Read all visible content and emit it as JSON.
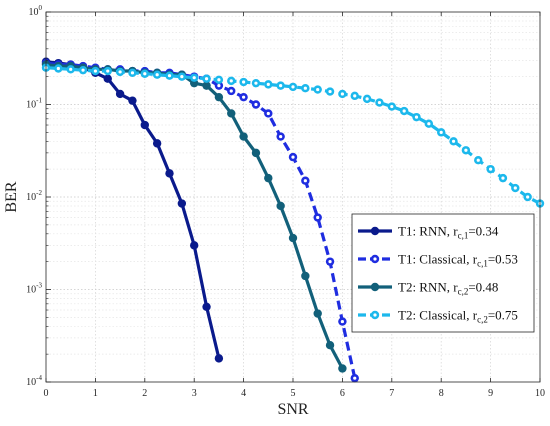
{
  "chart_data": {
    "type": "line",
    "title": "",
    "xlabel": "SNR",
    "ylabel": "BER",
    "xlim": [
      0,
      10
    ],
    "ylim": [
      0.0001,
      1
    ],
    "yscale": "log",
    "grid": true,
    "legend_position": "bottom-right",
    "x_ticks": [
      "0",
      "1",
      "2",
      "3",
      "4",
      "5",
      "6",
      "7",
      "8",
      "9",
      "10"
    ],
    "y_ticks": [
      {
        "base": "10",
        "exp": "0",
        "value": 1
      },
      {
        "base": "10",
        "exp": "-1",
        "value": 0.1
      },
      {
        "base": "10",
        "exp": "-2",
        "value": 0.01
      },
      {
        "base": "10",
        "exp": "-3",
        "value": 0.001
      },
      {
        "base": "10",
        "exp": "-4",
        "value": 0.0001
      }
    ],
    "series": [
      {
        "name": "T1: RNN, r_{c,1}=0.34",
        "legend": {
          "prefix": "T1: RNN, r",
          "sub": "c,1",
          "suffix": "=0.34"
        },
        "color": "#0a1a8c",
        "dashed": false,
        "marker": "filled",
        "x": [
          0,
          0.25,
          0.5,
          0.75,
          1,
          1.25,
          1.5,
          1.75,
          2,
          2.25,
          2.5,
          2.75,
          3,
          3.25,
          3.5
        ],
        "y": [
          0.29,
          0.28,
          0.27,
          0.25,
          0.22,
          0.19,
          0.13,
          0.11,
          0.06,
          0.038,
          0.018,
          0.0085,
          0.003,
          0.00065,
          0.00018
        ]
      },
      {
        "name": "T1: Classical, r_{c,1}=0.53",
        "legend": {
          "prefix": "T1: Classical, r",
          "sub": "c,1",
          "suffix": "=0.53"
        },
        "color": "#1f2de0",
        "dashed": true,
        "marker": "hollow",
        "x": [
          0,
          0.25,
          0.5,
          0.75,
          1,
          1.25,
          1.5,
          1.75,
          2,
          2.25,
          2.5,
          2.75,
          3,
          3.25,
          3.5,
          3.75,
          4,
          4.25,
          4.5,
          4.75,
          5,
          5.25,
          5.5,
          5.75,
          6,
          6.25
        ],
        "y": [
          0.28,
          0.27,
          0.27,
          0.26,
          0.25,
          0.24,
          0.24,
          0.23,
          0.23,
          0.22,
          0.22,
          0.21,
          0.2,
          0.19,
          0.16,
          0.14,
          0.12,
          0.1,
          0.08,
          0.045,
          0.027,
          0.015,
          0.006,
          0.002,
          0.00045,
          0.00011
        ]
      },
      {
        "name": "T2: RNN, r_{c,2}=0.48",
        "legend": {
          "prefix": "T2: RNN, r",
          "sub": "c,2",
          "suffix": "=0.48"
        },
        "color": "#12607a",
        "dashed": false,
        "marker": "filled",
        "x": [
          0,
          0.25,
          0.5,
          0.75,
          1,
          1.25,
          1.5,
          1.75,
          2,
          2.25,
          2.5,
          2.75,
          3,
          3.25,
          3.5,
          3.75,
          4,
          4.25,
          4.5,
          4.75,
          5,
          5.25,
          5.5,
          5.75,
          6
        ],
        "y": [
          0.27,
          0.26,
          0.26,
          0.25,
          0.24,
          0.24,
          0.23,
          0.23,
          0.22,
          0.22,
          0.21,
          0.21,
          0.17,
          0.16,
          0.12,
          0.08,
          0.045,
          0.03,
          0.016,
          0.008,
          0.0036,
          0.0014,
          0.00055,
          0.00025,
          0.00014
        ]
      },
      {
        "name": "T2: Classical, r_{c,2}=0.75",
        "legend": {
          "prefix": "T2: Classical, r",
          "sub": "c,2",
          "suffix": "=0.75"
        },
        "color": "#1cb8ec",
        "dashed": true,
        "marker": "hollow",
        "x": [
          0,
          0.25,
          0.5,
          0.75,
          1,
          1.25,
          1.5,
          1.75,
          2,
          2.25,
          2.5,
          2.75,
          3,
          3.25,
          3.5,
          3.75,
          4,
          4.25,
          4.5,
          4.75,
          5,
          5.25,
          5.5,
          5.75,
          6,
          6.25,
          6.5,
          6.75,
          7,
          7.25,
          7.5,
          7.75,
          8,
          8.25,
          8.5,
          8.75,
          9,
          9.25,
          9.5,
          9.75,
          10
        ],
        "y": [
          0.25,
          0.245,
          0.24,
          0.235,
          0.23,
          0.23,
          0.225,
          0.22,
          0.215,
          0.21,
          0.205,
          0.2,
          0.195,
          0.19,
          0.185,
          0.18,
          0.175,
          0.17,
          0.165,
          0.16,
          0.155,
          0.15,
          0.145,
          0.138,
          0.13,
          0.124,
          0.115,
          0.105,
          0.095,
          0.085,
          0.073,
          0.062,
          0.05,
          0.04,
          0.032,
          0.025,
          0.02,
          0.016,
          0.0125,
          0.01,
          0.0085
        ]
      }
    ]
  }
}
